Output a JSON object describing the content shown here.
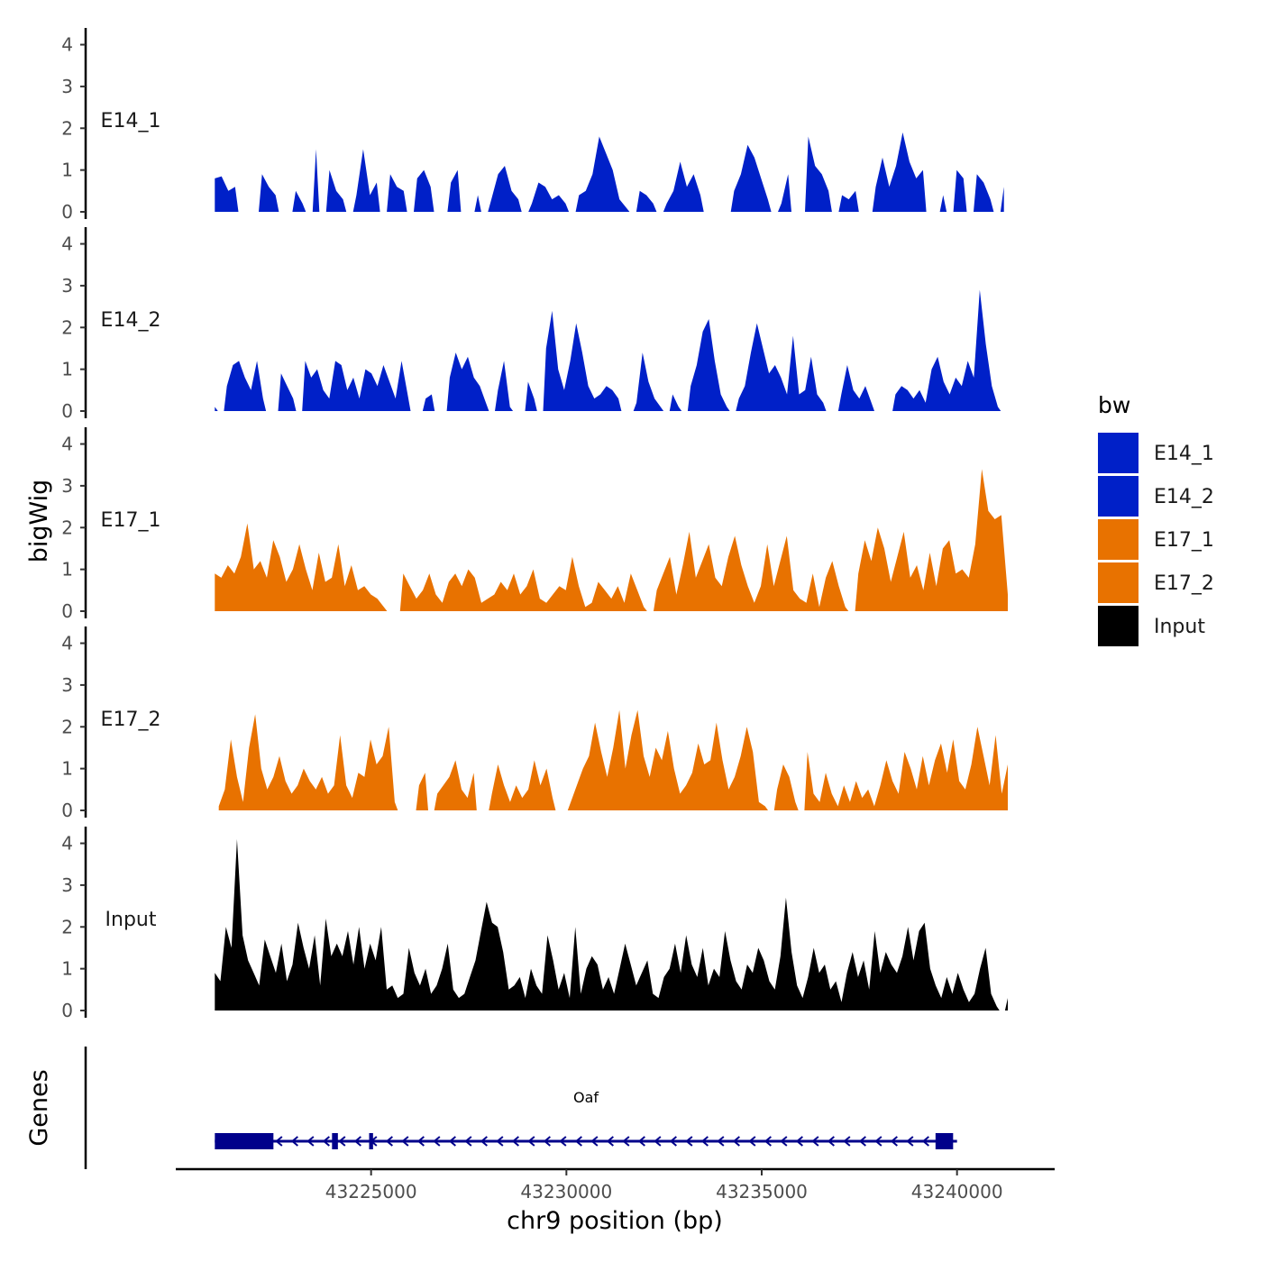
{
  "chart_data": {
    "type": "area",
    "title": "",
    "ylabel": "bigWig",
    "genes_label": "Genes",
    "xlabel": "chr9 position (bp)",
    "xlim": [
      43220000,
      43242500
    ],
    "x_ticks": [
      43225000,
      43230000,
      43235000,
      43240000
    ],
    "x_tick_labels": [
      "43225000",
      "43230000",
      "43235000",
      "43240000"
    ],
    "ylim": [
      0,
      4.4
    ],
    "y_ticks": [
      0,
      1,
      2,
      3,
      4
    ],
    "y_tick_labels": [
      "0",
      "1",
      "2",
      "3",
      "4"
    ],
    "legend": {
      "title": "bw",
      "position": "right",
      "entries": [
        {
          "label": "E14_1",
          "color": "#0020c8"
        },
        {
          "label": "E14_2",
          "color": "#0020c8"
        },
        {
          "label": "E17_1",
          "color": "#e87200"
        },
        {
          "label": "E17_2",
          "color": "#e87200"
        },
        {
          "label": "Input",
          "color": "#000000"
        }
      ]
    },
    "tracks": [
      {
        "name": "E14_1",
        "color": "#0020c8",
        "x_start": 43221000,
        "x_end": 43241200,
        "values": [
          0.8,
          0.85,
          0.5,
          0.6,
          0,
          0,
          0,
          0.9,
          0.6,
          0.4,
          0,
          0,
          0.5,
          0.2,
          0,
          1.5,
          0,
          1.0,
          0.5,
          0.3,
          0,
          0.4,
          1.5,
          0.4,
          0.7,
          0,
          0.9,
          0.6,
          0.5,
          0,
          0.8,
          1.0,
          0.6,
          0,
          0,
          0.7,
          1.0,
          0,
          0,
          0.4,
          0,
          0.3,
          0.9,
          1.1,
          0.5,
          0.3,
          0,
          0.2,
          0.7,
          0.6,
          0.3,
          0.4,
          0.2,
          0,
          0.4,
          0.5,
          0.9,
          1.8,
          1.4,
          1.0,
          0.3,
          0.1,
          0,
          0.5,
          0.4,
          0.2,
          0,
          0.2,
          0.5,
          1.2,
          0.6,
          0.9,
          0.4,
          0,
          0,
          0,
          0,
          0.5,
          0.9,
          1.6,
          1.3,
          0.8,
          0.3,
          0,
          0.2,
          0.9,
          0,
          0,
          1.8,
          1.1,
          0.9,
          0.5,
          0,
          0.4,
          0.3,
          0.5,
          0,
          0,
          0.6,
          1.3,
          0.6,
          1.1,
          1.9,
          1.2,
          0.8,
          1.0,
          0,
          0,
          0.4,
          0,
          1.0,
          0.8,
          0,
          0.9,
          0.7,
          0.3,
          0,
          0.6
        ]
      },
      {
        "name": "E14_2",
        "color": "#0020c8",
        "x_start": 43221000,
        "x_end": 43241200,
        "values": [
          0.1,
          0,
          0.6,
          1.1,
          1.2,
          0.8,
          0.5,
          1.2,
          0.3,
          0,
          0,
          0.9,
          0.6,
          0.3,
          0,
          1.2,
          0.8,
          1.0,
          0.5,
          0.3,
          1.2,
          1.1,
          0.5,
          0.8,
          0.3,
          1.0,
          0.9,
          0.6,
          1.1,
          0.7,
          0.3,
          1.2,
          0.4,
          0,
          0,
          0.3,
          0.4,
          0,
          0,
          0.8,
          1.4,
          1.0,
          1.3,
          0.8,
          0.6,
          0.2,
          0,
          0.5,
          1.2,
          0.1,
          0,
          0,
          0.7,
          0.3,
          0,
          1.5,
          2.4,
          1.0,
          0.5,
          1.2,
          2.1,
          1.4,
          0.6,
          0.3,
          0.4,
          0.6,
          0.5,
          0.3,
          0,
          0,
          0.2,
          1.4,
          0.7,
          0.3,
          0.1,
          0,
          0.4,
          0.1,
          0,
          0.6,
          1.1,
          1.9,
          2.2,
          1.2,
          0.4,
          0.1,
          0,
          0.3,
          0.6,
          1.4,
          2.1,
          1.5,
          0.9,
          1.1,
          0.8,
          0.4,
          1.8,
          0.4,
          0.5,
          1.3,
          0.4,
          0.2,
          0,
          0,
          0.4,
          1.1,
          0.5,
          0.3,
          0.6,
          0.2,
          0,
          0,
          0,
          0.4,
          0.6,
          0.5,
          0.3,
          0.5,
          0.2,
          1.0,
          1.3,
          0.7,
          0.4,
          0.8,
          0.6,
          1.2,
          0.8,
          2.9,
          1.6,
          0.6,
          0.1,
          0
        ]
      },
      {
        "name": "E17_1",
        "color": "#e87200",
        "x_start": 43221000,
        "x_end": 43241300,
        "values": [
          0.9,
          0.8,
          1.1,
          0.9,
          1.3,
          2.1,
          1.0,
          1.2,
          0.8,
          1.7,
          1.3,
          0.7,
          1.0,
          1.6,
          1.0,
          0.5,
          1.4,
          0.7,
          0.8,
          1.6,
          0.6,
          1.1,
          0.5,
          0.6,
          0.4,
          0.3,
          0.1,
          0,
          0,
          0.9,
          0.6,
          0.3,
          0.5,
          0.9,
          0.4,
          0.2,
          0.7,
          0.9,
          0.6,
          1.0,
          0.8,
          0.2,
          0.3,
          0.4,
          0.7,
          0.5,
          0.9,
          0.4,
          0.6,
          1.0,
          0.3,
          0.2,
          0.4,
          0.6,
          0.5,
          1.3,
          0.6,
          0.1,
          0.2,
          0.7,
          0.5,
          0.3,
          0.6,
          0.2,
          0.9,
          0.5,
          0.1,
          0,
          0.5,
          0.9,
          1.3,
          0.4,
          1.1,
          1.9,
          0.8,
          1.2,
          1.6,
          0.8,
          0.6,
          1.3,
          1.8,
          1.1,
          0.6,
          0.2,
          0.6,
          1.6,
          0.6,
          1.2,
          1.8,
          0.5,
          0.3,
          0.2,
          0.9,
          0.1,
          0.8,
          1.2,
          0.6,
          0.1,
          0,
          0.9,
          1.7,
          1.2,
          2.0,
          1.5,
          0.7,
          1.3,
          1.9,
          0.8,
          1.1,
          0.5,
          1.4,
          0.6,
          1.5,
          1.7,
          0.9,
          1.0,
          0.8,
          1.6,
          3.4,
          2.4,
          2.2,
          2.3,
          0.4
        ]
      },
      {
        "name": "E17_2",
        "color": "#e87200",
        "x_start": 43221100,
        "x_end": 43241300,
        "values": [
          0.1,
          0.5,
          1.7,
          0.8,
          0.2,
          1.5,
          2.3,
          1.0,
          0.5,
          0.8,
          1.3,
          0.7,
          0.4,
          0.6,
          1.0,
          0.7,
          0.5,
          0.8,
          0.4,
          0.6,
          1.8,
          0.6,
          0.3,
          0.9,
          0.8,
          1.7,
          1.1,
          1.3,
          2.0,
          0.2,
          0,
          0,
          0,
          0.6,
          0.9,
          0,
          0.4,
          0.6,
          0.8,
          1.2,
          0.5,
          0.3,
          0.9,
          0,
          0,
          0.4,
          1.1,
          0.6,
          0.2,
          0.6,
          0.3,
          0.5,
          1.2,
          0.6,
          1.0,
          0.3,
          0,
          0,
          0.2,
          0.6,
          1.0,
          1.3,
          2.1,
          1.4,
          0.8,
          1.5,
          2.4,
          1.0,
          1.8,
          2.4,
          1.3,
          0.8,
          1.5,
          1.2,
          1.9,
          1.0,
          0.4,
          0.6,
          0.9,
          1.6,
          1.1,
          1.2,
          2.1,
          1.2,
          0.5,
          0.8,
          1.3,
          2.0,
          1.4,
          0.2,
          0.1,
          0,
          0.5,
          1.1,
          0.8,
          0.2,
          0,
          1.4,
          0.4,
          0.2,
          0.9,
          0.4,
          0.1,
          0.6,
          0.2,
          0.7,
          0.3,
          0.5,
          0.1,
          0.6,
          1.2,
          0.7,
          0.4,
          1.4,
          1.0,
          0.5,
          1.3,
          0.6,
          1.2,
          1.6,
          0.9,
          1.7,
          0.7,
          0.5,
          1.1,
          2.0,
          1.3,
          0.6,
          1.8,
          0.4,
          1.1
        ]
      },
      {
        "name": "Input",
        "color": "#000000",
        "x_start": 43221000,
        "x_end": 43241300,
        "values": [
          0.9,
          0.7,
          2.0,
          1.5,
          4.1,
          1.8,
          1.2,
          0.9,
          0.6,
          1.7,
          1.3,
          0.9,
          1.6,
          0.7,
          1.1,
          2.1,
          1.5,
          1.0,
          1.8,
          0.6,
          2.2,
          1.3,
          1.6,
          1.3,
          1.9,
          1.1,
          2.0,
          1.0,
          1.6,
          1.2,
          2.0,
          0.5,
          0.6,
          0.3,
          0.4,
          1.5,
          0.9,
          0.6,
          1.0,
          0.4,
          0.6,
          1.0,
          1.6,
          0.5,
          0.3,
          0.4,
          0.8,
          1.2,
          1.9,
          2.6,
          2.1,
          2.0,
          1.4,
          0.5,
          0.6,
          0.8,
          0.3,
          1.0,
          0.6,
          0.4,
          1.8,
          1.2,
          0.5,
          0.9,
          0.3,
          2.0,
          0.4,
          1.0,
          1.3,
          1.1,
          0.5,
          0.8,
          0.4,
          1.0,
          1.6,
          1.1,
          0.6,
          0.9,
          1.2,
          0.4,
          0.3,
          0.8,
          1.0,
          1.6,
          0.9,
          1.8,
          1.1,
          0.8,
          1.5,
          0.6,
          1.0,
          0.8,
          1.9,
          1.2,
          0.7,
          0.5,
          1.1,
          0.9,
          1.5,
          1.2,
          0.7,
          0.5,
          1.3,
          2.7,
          1.4,
          0.6,
          0.3,
          0.8,
          1.5,
          0.9,
          1.1,
          0.5,
          0.7,
          0.2,
          0.9,
          1.4,
          0.8,
          1.2,
          0.5,
          1.9,
          0.9,
          1.4,
          1.1,
          0.9,
          1.3,
          2.0,
          1.2,
          1.9,
          2.1,
          1.0,
          0.6,
          0.3,
          0.8,
          0.4,
          0.9,
          0.5,
          0.2,
          0.4,
          1.0,
          1.5,
          0.4,
          0.1,
          0,
          0.3
        ]
      }
    ],
    "gene": {
      "name": "Oaf",
      "strand": "-",
      "color": "#00008b",
      "start": 43221000,
      "end": 43240000,
      "exons": [
        [
          43221000,
          43222500
        ],
        [
          43224000,
          43224150
        ],
        [
          43224950,
          43225050
        ],
        [
          43239450,
          43239900
        ]
      ]
    }
  }
}
